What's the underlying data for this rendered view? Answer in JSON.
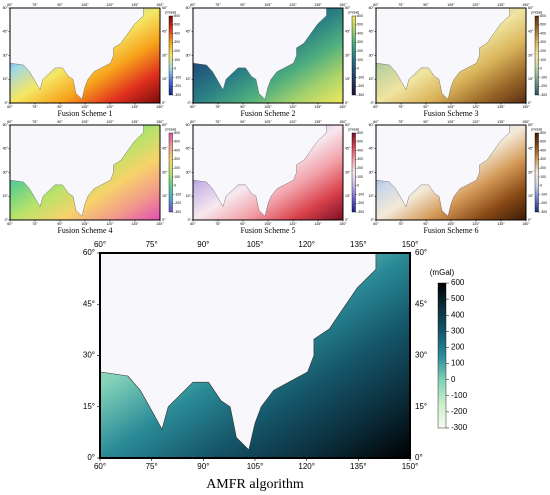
{
  "small_panels": [
    {
      "caption": "Fusion Scheme 1",
      "colors": [
        "#7a0a0a",
        "#e0301e",
        "#f7a21b",
        "#f5e663",
        "#9fd8e8",
        "#3b6fd6",
        "#1a1a8c"
      ]
    },
    {
      "caption": "Fusion Scheme 2",
      "colors": [
        "#f2e85a",
        "#a9d36b",
        "#4fae7e",
        "#2b7f86",
        "#22557a",
        "#24345e",
        "#1c1535"
      ]
    },
    {
      "caption": "Fusion Scheme 3",
      "colors": [
        "#5a2c10",
        "#9c6a2a",
        "#d9b45a",
        "#f0e4a0",
        "#bcd1a0",
        "#6f9b8a",
        "#274f5c"
      ]
    },
    {
      "caption": "Fusion Scheme 4",
      "colors": [
        "#e04fb0",
        "#f29a8a",
        "#f7d36a",
        "#b7e36b",
        "#5fcf8a",
        "#4aa6d8",
        "#6a4fd0"
      ]
    },
    {
      "caption": "Fusion Scheme 5",
      "colors": [
        "#7a0f26",
        "#d8404a",
        "#f2a0a8",
        "#f7e8ee",
        "#c9b6e6",
        "#6f5fd0",
        "#1b1f8c"
      ]
    },
    {
      "caption": "Fusion Scheme 6",
      "colors": [
        "#3a1a06",
        "#8a4a16",
        "#d49a58",
        "#f4ead8",
        "#c7d3ea",
        "#6a7fc4",
        "#1e2a7a"
      ]
    }
  ],
  "main_panel": {
    "caption": "AMFR algorithm",
    "colors": [
      "#000000",
      "#0b2e3c",
      "#15566a",
      "#2a8a96",
      "#7fd0b8",
      "#cdeec9",
      "#f4fbf2"
    ]
  },
  "lon_ticks": [
    {
      "value": 60,
      "label": "60°"
    },
    {
      "value": 75,
      "label": "75°"
    },
    {
      "value": 90,
      "label": "90°"
    },
    {
      "value": 105,
      "label": "105°"
    },
    {
      "value": 120,
      "label": "120°"
    },
    {
      "value": 135,
      "label": "135°"
    },
    {
      "value": 150,
      "label": "150°"
    }
  ],
  "lat_ticks": [
    {
      "value": 0,
      "label": "0°"
    },
    {
      "value": 15,
      "label": "15°"
    },
    {
      "value": 30,
      "label": "30°"
    },
    {
      "value": 45,
      "label": "45°"
    },
    {
      "value": 60,
      "label": "60°"
    }
  ],
  "colorbar": {
    "unit": "(mGal)",
    "ticks": [
      600,
      500,
      400,
      300,
      200,
      100,
      0,
      -100,
      -200,
      -300
    ]
  }
}
